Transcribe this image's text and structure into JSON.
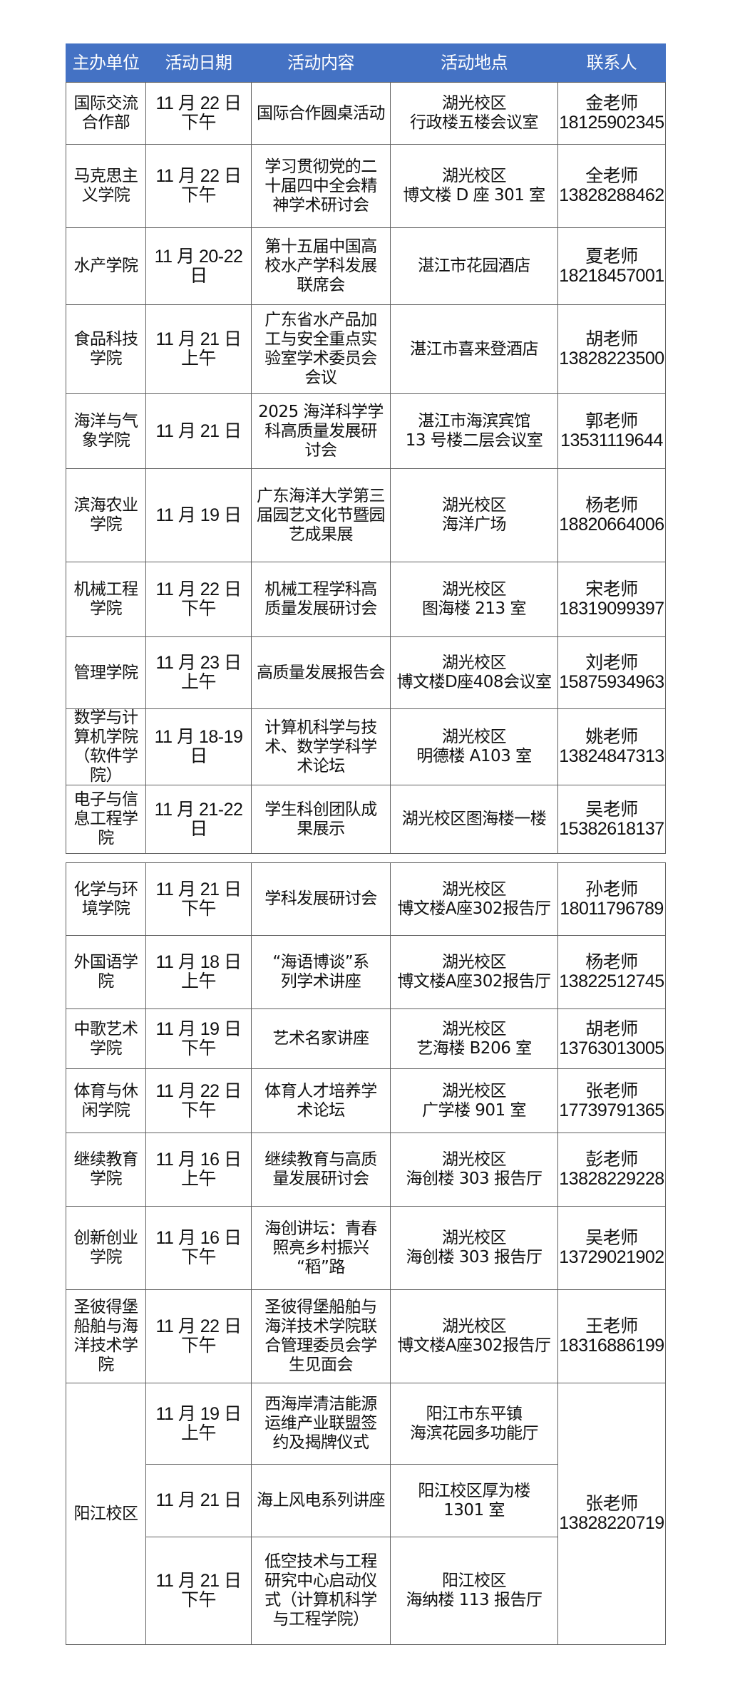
{
  "header": [
    "主办单位",
    "活动日期",
    "活动内容",
    "活动地点",
    "联系人"
  ],
  "colors": {
    "header_bg": "#4472C4",
    "header_text": "#FFFFFF",
    "border": "#606060"
  },
  "table1": [
    {
      "unit": "国际交流\n合作部",
      "date": "11 月 22 日\n下午",
      "content": "国际合作圆桌活动",
      "place": "湖光校区\n行政楼五楼会议室",
      "contact": "金老师\n18125902345"
    },
    {
      "unit": "马克思主\n义学院",
      "date": "11 月 22 日\n下午",
      "content": "学习贯彻党的二\n十届四中全会精\n神学术研讨会",
      "place": "湖光校区\n博文楼 D 座 301 室",
      "contact": "全老师\n13828288462"
    },
    {
      "unit": "水产学院",
      "date": "11 月 20-22\n日",
      "content": "第十五届中国高\n校水产学科发展\n联席会",
      "place": "湛江市花园酒店",
      "contact": "夏老师\n18218457001"
    },
    {
      "unit": "食品科技\n学院",
      "date": "11 月 21 日\n上午",
      "content": "广东省水产品加\n工与安全重点实\n验室学术委员会\n会议",
      "place": "湛江市喜来登酒店",
      "contact": "胡老师\n13828223500"
    },
    {
      "unit": "海洋与气\n象学院",
      "date": "11 月 21 日",
      "content": "2025 海洋科学学\n科高质量发展研\n讨会",
      "place": "湛江市海滨宾馆\n13 号楼二层会议室",
      "contact": "郭老师\n13531119644"
    },
    {
      "unit": "滨海农业\n学院",
      "date": "11 月 19 日",
      "content": "广东海洋大学第三\n届园艺文化节暨园\n艺成果展",
      "place": "湖光校区\n海洋广场",
      "contact": "杨老师\n18820664006"
    },
    {
      "unit": "机械工程\n学院",
      "date": "11 月 22 日\n下午",
      "content": "机械工程学科高\n质量发展研讨会",
      "place": "湖光校区\n图海楼 213 室",
      "contact": "宋老师\n18319099397"
    },
    {
      "unit": "管理学院",
      "date": "11 月 23 日\n上午",
      "content": "高质量发展报告会",
      "place": "湖光校区\n博文楼D座408会议室",
      "contact": "刘老师\n15875934963"
    },
    {
      "unit": "数学与计\n算机学院\n（软件学\n院）",
      "date": "11 月 18-19\n日",
      "content": "计算机科学与技\n术、数学学科学\n术论坛",
      "place": "湖光校区\n明德楼 A103 室",
      "contact": "姚老师\n13824847313"
    },
    {
      "unit": "电子与信\n息工程学\n院",
      "date": "11 月 21-22\n日",
      "content": "学生科创团队成\n果展示",
      "place": "湖光校区图海楼一楼",
      "contact": "吴老师\n15382618137"
    }
  ],
  "table2": [
    {
      "unit": "化学与环\n境学院",
      "date": "11 月 21 日\n下午",
      "content": "学科发展研讨会",
      "place": "湖光校区\n博文楼A座302报告厅",
      "contact": "孙老师\n18011796789"
    },
    {
      "unit": "外国语学\n院",
      "date": "11 月 18 日\n上午",
      "content": "“海语博谈”系\n列学术讲座",
      "place": "湖光校区\n博文楼A座302报告厅",
      "contact": "杨老师\n13822512745"
    },
    {
      "unit": "中歌艺术\n学院",
      "date": "11 月 19 日\n下午",
      "content": "艺术名家讲座",
      "place": "湖光校区\n艺海楼 B206 室",
      "contact": "胡老师\n13763013005"
    },
    {
      "unit": "体育与休\n闲学院",
      "date": "11 月 22 日\n下午",
      "content": "体育人才培养学\n术论坛",
      "place": "湖光校区\n广学楼 901 室",
      "contact": "张老师\n17739791365"
    },
    {
      "unit": "继续教育\n学院",
      "date": "11 月 16 日\n上午",
      "content": "继续教育与高质\n量发展研讨会",
      "place": "湖光校区\n海创楼  303 报告厅",
      "contact": "彭老师\n13828229228"
    },
    {
      "unit": "创新创业\n学院",
      "date": "11 月 16 日\n下午",
      "content": "海创讲坛：青春\n照亮乡村振兴\n“稻”路",
      "place": "湖光校区\n海创楼 303 报告厅",
      "contact": "吴老师\n13729021902"
    },
    {
      "unit": "圣彼得堡\n船舶与海\n洋技术学\n院",
      "date": "11 月 22 日\n下午",
      "content": "圣彼得堡船舶与\n海洋技术学院联\n合管理委员会学\n生见面会",
      "place": "湖光校区\n博文楼A座302报告厅",
      "contact": "王老师\n18316886199"
    }
  ],
  "yangjiang": {
    "unit": "阳江校区",
    "contact": "张老师\n13828220719",
    "events": [
      {
        "date": "11 月 19 日\n上午",
        "content": "西海岸清洁能源\n运维产业联盟签\n约及揭牌仪式",
        "place": "阳江市东平镇\n海滨花园多功能厅"
      },
      {
        "date": "11 月 21 日",
        "content": "海上风电系列讲座",
        "place": "阳江校区厚为楼\n1301 室"
      },
      {
        "date": "11 月 21 日\n下午",
        "content": "低空技术与工程\n研究中心启动仪\n式（计算机科学\n与工程学院）",
        "place": "阳江校区\n海纳楼 113 报告厅"
      }
    ]
  }
}
